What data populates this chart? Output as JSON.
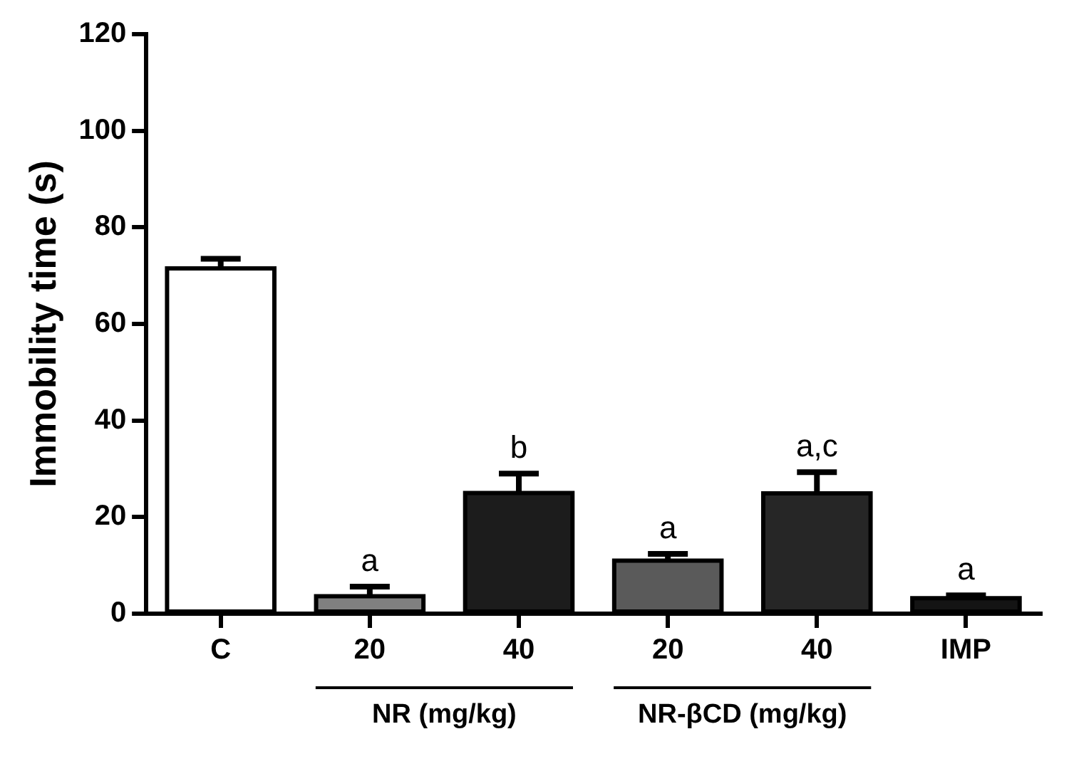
{
  "chart_data": {
    "type": "bar",
    "ylabel": "Immobility time (s)",
    "categories": [
      "C",
      "20",
      "40",
      "20",
      "40",
      "IMP"
    ],
    "values": [
      71.5,
      3.6,
      25,
      11,
      24.9,
      3.2
    ],
    "errors": [
      2,
      2,
      4,
      1.4,
      4.4,
      0.6
    ],
    "colors": [
      "#ffffff",
      "#808080",
      "#1c1c1c",
      "#5a5a5a",
      "#262626",
      "#141414"
    ],
    "value_labels": [
      null,
      "a",
      "b",
      "a",
      "a,c",
      "a"
    ],
    "annotations": [
      "NR (mg/kg)",
      "NR-βCD (mg/kg)"
    ],
    "ylim": [
      0,
      120
    ],
    "yticks": [
      0,
      20,
      40,
      60,
      80,
      100,
      120
    ],
    "grid": false,
    "legend": false
  }
}
